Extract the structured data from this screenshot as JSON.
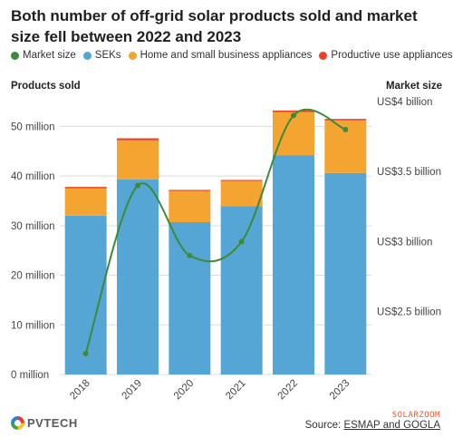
{
  "title": "Both number of off-grid solar products sold and market size fell between 2022 and 2023",
  "legend": [
    {
      "label": "Market size",
      "color": "#3d8a3a"
    },
    {
      "label": "SEKs",
      "color": "#55a6d4"
    },
    {
      "label": "Home and small business appliances",
      "color": "#f4a531"
    },
    {
      "label": "Productive use appliances",
      "color": "#e8432a"
    }
  ],
  "left_axis_title": "Products sold",
  "right_axis_title": "Market size",
  "logo_text": "PVTECH",
  "watermark": "SOLARZOOM",
  "source_prefix": "Source: ",
  "source_link": "ESMAP and GOGLA",
  "chart_data": {
    "type": "bar",
    "stacked": true,
    "categories": [
      "2018",
      "2019",
      "2020",
      "2021",
      "2022",
      "2023"
    ],
    "series": [
      {
        "name": "SEKs",
        "color": "#55a6d4",
        "values": [
          32,
          39.3,
          30.7,
          33.9,
          44.2,
          40.6
        ]
      },
      {
        "name": "Home and small business appliances",
        "color": "#f4a531",
        "values": [
          5.5,
          7.9,
          6.3,
          5.1,
          8.7,
          10.6
        ]
      },
      {
        "name": "Productive use appliances",
        "color": "#e8432a",
        "values": [
          0.3,
          0.4,
          0.2,
          0.2,
          0.3,
          0.3
        ]
      }
    ],
    "line_series": {
      "name": "Market size",
      "color": "#3d8a3a",
      "values": [
        2.2,
        3.4,
        2.9,
        3.0,
        3.9,
        3.8
      ]
    },
    "y_left": {
      "label": "Products sold",
      "ylim": [
        0,
        55
      ],
      "ticks": [
        0,
        10,
        20,
        30,
        40,
        50
      ],
      "tick_labels": [
        "0 million",
        "10 million",
        "20 million",
        "30 million",
        "40 million",
        "50 million"
      ]
    },
    "y_right": {
      "label": "Market size",
      "ylim": [
        2.05,
        4.0
      ],
      "ticks": [
        2.5,
        3.0,
        3.5,
        4.0
      ],
      "tick_labels": [
        "US$2.5 billion",
        "US$3 billion",
        "US$3.5 billion",
        "US$4 billion"
      ]
    },
    "grid": true
  }
}
